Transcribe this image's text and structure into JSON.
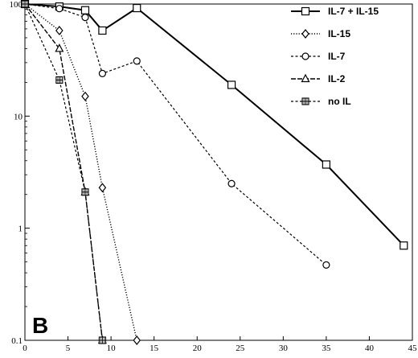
{
  "chart_data": {
    "type": "line",
    "panel_label": "B",
    "xlim": [
      0,
      45
    ],
    "ylim": [
      0.1,
      100
    ],
    "y_scale": "log",
    "x_ticks": [
      0,
      5,
      10,
      15,
      20,
      25,
      30,
      35,
      40,
      45
    ],
    "x_tick_labels": [
      "0",
      "5",
      "10",
      "15",
      "20",
      "25",
      "30",
      "35",
      "40",
      "45"
    ],
    "y_ticks": [
      0.1,
      1,
      10,
      100
    ],
    "y_tick_labels": [
      "0.1",
      "1",
      "10",
      "100"
    ],
    "legend_position": "top-right",
    "series": [
      {
        "name": "IL-7 + IL-15",
        "marker": "square",
        "dash": "solid",
        "x": [
          0,
          4,
          7,
          9,
          13,
          24,
          35,
          44
        ],
        "y": [
          100,
          95,
          88,
          58,
          92,
          19,
          3.7,
          0.7
        ]
      },
      {
        "name": "IL-15",
        "marker": "diamond",
        "dash": "dotted",
        "x": [
          0,
          4,
          7,
          9,
          13
        ],
        "y": [
          100,
          58,
          15,
          2.3,
          0.1
        ]
      },
      {
        "name": "IL-7",
        "marker": "circle",
        "dash": "dashed",
        "x": [
          0,
          4,
          7,
          9,
          13,
          24,
          35
        ],
        "y": [
          100,
          91,
          76,
          24,
          31,
          2.5,
          0.47
        ]
      },
      {
        "name": "IL-2",
        "marker": "triangle",
        "dash": "longdash",
        "x": [
          0,
          4,
          7,
          9
        ],
        "y": [
          100,
          40,
          2.1,
          0.1
        ]
      },
      {
        "name": "no IL",
        "marker": "crossed-square",
        "dash": "dashed",
        "x": [
          0,
          4,
          7,
          9
        ],
        "y": [
          100,
          21,
          2.1,
          0.1
        ]
      }
    ]
  }
}
